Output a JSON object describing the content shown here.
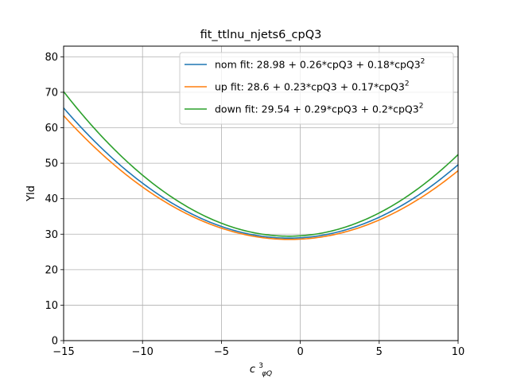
{
  "chart_data": {
    "type": "line",
    "title": "fit_ttlnu_njets6_cpQ3",
    "xlabel": "c",
    "xlabel_sup": "3",
    "xlabel_sub": "φQ",
    "ylabel": "Yld",
    "xlim": [
      -15,
      10
    ],
    "ylim": [
      0,
      83
    ],
    "xticks": [
      -15,
      -10,
      -5,
      0,
      5,
      10
    ],
    "xtick_labels": [
      "−15",
      "−10",
      "−5",
      "0",
      "5",
      "10"
    ],
    "yticks": [
      0,
      10,
      20,
      30,
      40,
      50,
      60,
      70,
      80
    ],
    "ytick_labels": [
      "0",
      "10",
      "20",
      "30",
      "40",
      "50",
      "60",
      "70",
      "80"
    ],
    "grid": true,
    "legend_position": "upper right",
    "series": [
      {
        "name": "nom fit: 28.98 + 0.26*cpQ3 + 0.18*cpQ3",
        "name_sup": "2",
        "color": "#1f77b4",
        "coefficients": [
          28.98,
          0.26,
          0.18
        ]
      },
      {
        "name": "up fit: 28.6 + 0.23*cpQ3 + 0.17*cpQ3",
        "name_sup": "2",
        "color": "#ff7f0e",
        "coefficients": [
          28.6,
          0.23,
          0.17
        ]
      },
      {
        "name": "down fit: 29.54 + 0.29*cpQ3 + 0.2*cpQ3",
        "name_sup": "2",
        "color": "#2ca02c",
        "coefficients": [
          29.54,
          0.29,
          0.2
        ]
      }
    ]
  }
}
